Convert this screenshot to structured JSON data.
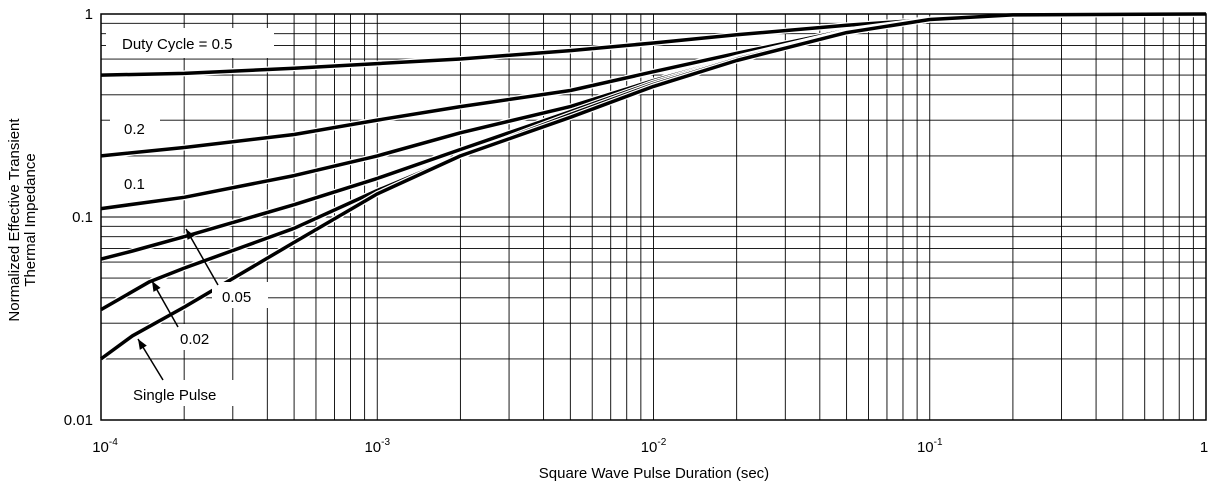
{
  "chart_data": {
    "type": "line",
    "title": "",
    "xlabel": "Square Wave Pulse Duration (sec)",
    "ylabel": [
      "Normalized Effective Transient",
      "Thermal Impedance"
    ],
    "x_scale": "log",
    "y_scale": "log",
    "xlim": [
      0.0001,
      1
    ],
    "ylim": [
      0.01,
      1
    ],
    "grid": true,
    "x_ticks": [
      {
        "base": "10",
        "exp": "-4",
        "value": 0.0001
      },
      {
        "base": "10",
        "exp": "-3",
        "value": 0.001
      },
      {
        "base": "10",
        "exp": "-2",
        "value": 0.01
      },
      {
        "base": "10",
        "exp": "-1",
        "value": 0.1
      },
      {
        "base": "1",
        "exp": "",
        "value": 1
      }
    ],
    "y_ticks": [
      {
        "label": "1",
        "value": 1
      },
      {
        "label": "0.1",
        "value": 0.1
      },
      {
        "label": "0.01",
        "value": 0.01
      }
    ],
    "series": [
      {
        "name": "Duty Cycle = 0.5",
        "x": [
          0.0001,
          0.0002,
          0.0005,
          0.001,
          0.002,
          0.005,
          0.01,
          0.02,
          0.05,
          0.1,
          0.2,
          1
        ],
        "y": [
          0.5,
          0.51,
          0.54,
          0.57,
          0.6,
          0.66,
          0.72,
          0.79,
          0.88,
          0.94,
          0.99,
          1.0
        ]
      },
      {
        "name": "0.2",
        "x": [
          0.0001,
          0.0002,
          0.0005,
          0.001,
          0.002,
          0.005,
          0.01,
          0.02,
          0.05,
          0.1,
          0.2,
          1
        ],
        "y": [
          0.2,
          0.22,
          0.255,
          0.3,
          0.35,
          0.42,
          0.52,
          0.64,
          0.83,
          0.94,
          0.99,
          1.0
        ]
      },
      {
        "name": "0.1",
        "x": [
          0.0001,
          0.0002,
          0.0005,
          0.001,
          0.002,
          0.005,
          0.01,
          0.02,
          0.05,
          0.1,
          0.2,
          1
        ],
        "y": [
          0.11,
          0.125,
          0.16,
          0.2,
          0.26,
          0.35,
          0.47,
          0.61,
          0.82,
          0.94,
          0.99,
          1.0
        ]
      },
      {
        "name": "0.05",
        "x": [
          0.0001,
          0.00013,
          0.0002,
          0.0005,
          0.001,
          0.002,
          0.005,
          0.01,
          0.02,
          0.05,
          0.1,
          0.2,
          1
        ],
        "y": [
          0.062,
          0.068,
          0.08,
          0.115,
          0.155,
          0.215,
          0.33,
          0.46,
          0.605,
          0.82,
          0.94,
          0.99,
          1.0
        ]
      },
      {
        "name": "0.02",
        "x": [
          0.0001,
          0.00015,
          0.0002,
          0.0005,
          0.001,
          0.002,
          0.005,
          0.01,
          0.02,
          0.05,
          0.1,
          0.2,
          1
        ],
        "y": [
          0.035,
          0.048,
          0.056,
          0.088,
          0.135,
          0.2,
          0.32,
          0.45,
          0.6,
          0.815,
          0.94,
          0.99,
          1.0
        ]
      },
      {
        "name": "Single Pulse",
        "x": [
          0.0001,
          0.00013,
          0.0002,
          0.0005,
          0.001,
          0.002,
          0.005,
          0.01,
          0.02,
          0.05,
          0.1,
          0.2,
          1
        ],
        "y": [
          0.02,
          0.026,
          0.036,
          0.075,
          0.13,
          0.2,
          0.31,
          0.44,
          0.59,
          0.81,
          0.94,
          0.99,
          1.0
        ]
      }
    ],
    "annotations": [
      {
        "text": "Duty Cycle = 0.5",
        "series": "Duty Cycle = 0.5"
      },
      {
        "text": "0.2",
        "series": "0.2"
      },
      {
        "text": "0.1",
        "series": "0.1"
      },
      {
        "text": "0.05",
        "series": "0.05"
      },
      {
        "text": "0.02",
        "series": "0.02"
      },
      {
        "text": "Single Pulse",
        "series": "Single Pulse"
      }
    ],
    "colors": {
      "line": "#000000",
      "grid": "#000000",
      "background": "#ffffff"
    }
  }
}
